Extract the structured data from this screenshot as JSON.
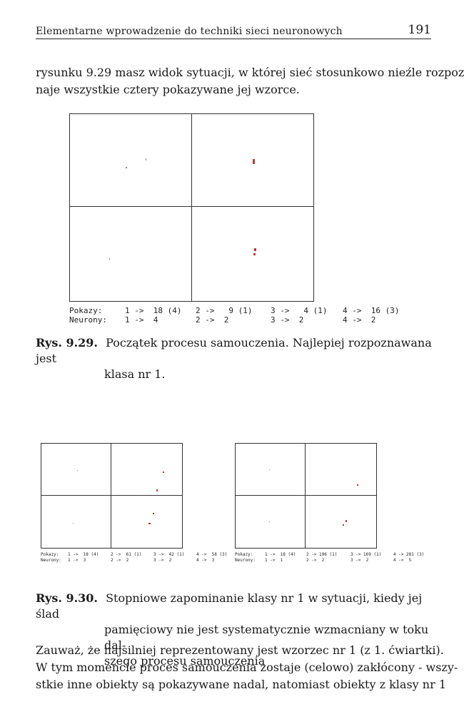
{
  "header": {
    "running_title": "Elementarne wprowadzenie do techniki sieci neuronowych",
    "page_number": "191"
  },
  "intro": {
    "line1": "rysunku 9.29 masz widok sytuacji, w której sieć stosunkowo nieźle rozpoz-",
    "line2": "naje wszystkie cztery pokazywane jej wzorce."
  },
  "fig29": {
    "stats": {
      "pokazy_label": "Pokazy:",
      "neurony_label": "Neurony:",
      "pokazy": [
        "1 ->  18 (4)",
        "2 ->   9 (1)",
        "3 ->   4 (1)",
        "4 ->  16 (3)"
      ],
      "neurony": [
        "1 ->  4",
        "2 ->  2",
        "3 ->  2",
        "4 ->  2"
      ]
    },
    "caption_label": "Rys. 9.29.",
    "caption_line1": "Początek procesu samouczenia. Najlepiej rozpoznawana jest",
    "caption_line2": "klasa nr 1."
  },
  "fig30": {
    "left_stats": {
      "pokazy_label": "Pokazy:",
      "neurony_label": "Neurony:",
      "pokazy": [
        "1 ->  18 (4)",
        "2 ->  61 (1)",
        "3 ->  42 (1)",
        "4 ->  58 (3)"
      ],
      "neurony": [
        "1 ->  3",
        "2 ->  2",
        "3 ->  2",
        "4 ->  3"
      ]
    },
    "right_stats": {
      "pokazy_label": "Pokazy:",
      "neurony_label": "Neurony:",
      "pokazy": [
        "1 ->  18 (4)",
        "2 -> 196 (1)",
        "3 -> 169 (1)",
        "4 -> 281 (3)"
      ],
      "neurony": [
        "1 ->  1",
        "2 ->  2",
        "3 ->  2",
        "4 ->  5"
      ]
    },
    "caption_label": "Rys. 9.30.",
    "caption_line1": "Stopniowe zapominanie klasy nr 1 w sytuacji, kiedy jej ślad",
    "caption_line2": "pamięciowy nie jest systematycznie wzmacniany w toku dal-",
    "caption_line3": "szego procesu samouczenia"
  },
  "outro": {
    "line1": "Zauważ, że najsilniej reprezentowany jest wzorzec nr 1 (z 1. ćwiartki).",
    "line2": "W tym momencie proces samouczenia zostaje (celowo) zakłócony - wszy-",
    "line3": "stkie inne obiekty są pokazywane nadal, natomiast obiekty z klasy nr 1"
  },
  "colors": {
    "neuron": "#c0392b",
    "grid": "#333333",
    "text": "#1a1a1a"
  }
}
